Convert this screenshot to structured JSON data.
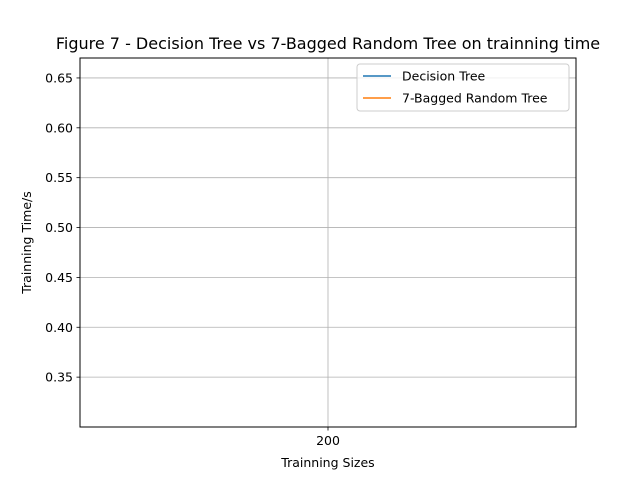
{
  "chart_data": {
    "type": "line",
    "title": "Figure 7 - Decision Tree vs 7-Bagged Random Tree on trainning time",
    "xlabel": "Trainning Sizes",
    "ylabel": "Trainning Time/s",
    "categories": [
      "200"
    ],
    "x": [
      200
    ],
    "xlim": [
      150,
      250
    ],
    "ylim": [
      0.3,
      0.67
    ],
    "yticks": [
      "0.35",
      "0.40",
      "0.45",
      "0.50",
      "0.55",
      "0.60",
      "0.65"
    ],
    "grid": true,
    "legend": "top-right",
    "series": [
      {
        "name": "Decision Tree",
        "color": "#1f77b4",
        "x": [
          200
        ],
        "values": [
          null
        ]
      },
      {
        "name": "7-Bagged Random Tree",
        "color": "#ff7f0e",
        "x": [
          200
        ],
        "values": [
          null
        ]
      }
    ]
  }
}
